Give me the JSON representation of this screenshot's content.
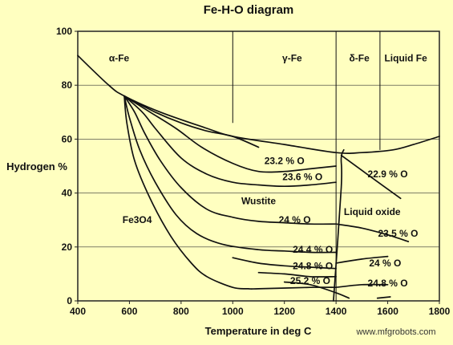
{
  "chart_data": {
    "type": "line",
    "title": "Fe-H-O diagram",
    "xlabel": "Temperature in deg C",
    "ylabel": "Hydrogen %",
    "xlim": [
      400,
      1800
    ],
    "ylim": [
      0,
      100
    ],
    "xticks": [
      400,
      600,
      800,
      1000,
      1200,
      1400,
      1600,
      1800
    ],
    "yticks": [
      0,
      20,
      40,
      60,
      80,
      100
    ],
    "grid": true,
    "background_color": "#ffffc0",
    "line_color": "#111111",
    "grid_color": "#333333",
    "phase_dividers": [
      {
        "x": 1000,
        "y_from": 66,
        "y_to": 100
      },
      {
        "x": 1400,
        "y_from": 0,
        "y_to": 100
      },
      {
        "x": 1570,
        "y_from": 56,
        "y_to": 100
      }
    ],
    "series": [
      {
        "points": [
          [
            400,
            91
          ],
          [
            520,
            80
          ],
          [
            580,
            76
          ],
          [
            720,
            70
          ],
          [
            900,
            64
          ],
          [
            1000,
            61
          ],
          [
            1200,
            58
          ],
          [
            1400,
            55
          ],
          [
            1500,
            55
          ],
          [
            1620,
            56
          ],
          [
            1700,
            58
          ],
          [
            1800,
            61
          ]
        ]
      },
      {
        "points": [
          [
            580,
            76
          ],
          [
            700,
            70
          ],
          [
            800,
            66
          ],
          [
            900,
            63
          ],
          [
            1000,
            61
          ],
          [
            1100,
            57
          ]
        ]
      },
      {
        "points": [
          [
            580,
            76
          ],
          [
            680,
            70
          ],
          [
            780,
            64
          ],
          [
            880,
            57
          ],
          [
            1000,
            51
          ],
          [
            1100,
            48
          ],
          [
            1200,
            48
          ],
          [
            1300,
            49
          ],
          [
            1400,
            50
          ]
        ]
      },
      {
        "points": [
          [
            580,
            76
          ],
          [
            650,
            70
          ],
          [
            700,
            64
          ],
          [
            800,
            53
          ],
          [
            900,
            47
          ],
          [
            1000,
            44
          ],
          [
            1100,
            43
          ],
          [
            1200,
            42.5
          ],
          [
            1300,
            43
          ],
          [
            1400,
            44
          ]
        ]
      },
      {
        "points": [
          [
            580,
            76
          ],
          [
            620,
            70
          ],
          [
            660,
            62
          ],
          [
            720,
            52
          ],
          [
            800,
            42
          ],
          [
            900,
            34
          ],
          [
            1000,
            31
          ],
          [
            1100,
            29.5
          ],
          [
            1200,
            29
          ],
          [
            1300,
            28.5
          ],
          [
            1400,
            28.5
          ]
        ]
      },
      {
        "points": [
          [
            580,
            76
          ],
          [
            600,
            68
          ],
          [
            640,
            56
          ],
          [
            700,
            44
          ],
          [
            780,
            32
          ],
          [
            860,
            25
          ],
          [
            960,
            21
          ],
          [
            1100,
            19
          ],
          [
            1200,
            18.5
          ],
          [
            1300,
            18
          ],
          [
            1400,
            18
          ]
        ]
      },
      {
        "points": [
          [
            580,
            76
          ],
          [
            590,
            66
          ],
          [
            620,
            52
          ],
          [
            680,
            38
          ],
          [
            760,
            24
          ],
          [
            840,
            14
          ],
          [
            900,
            9
          ],
          [
            1000,
            5
          ],
          [
            1060,
            4.5
          ],
          [
            1100,
            4.5
          ],
          [
            1300,
            5
          ],
          [
            1400,
            5
          ]
        ]
      },
      {
        "points": [
          [
            1000,
            16
          ],
          [
            1100,
            14
          ],
          [
            1200,
            13
          ],
          [
            1300,
            12.5
          ],
          [
            1400,
            12
          ]
        ]
      },
      {
        "points": [
          [
            1100,
            10.5
          ],
          [
            1200,
            10
          ],
          [
            1300,
            9
          ],
          [
            1400,
            9
          ]
        ]
      },
      {
        "points": [
          [
            1200,
            7
          ],
          [
            1300,
            6
          ],
          [
            1400,
            3
          ],
          [
            1450,
            1
          ]
        ]
      },
      {
        "points": [
          [
            1390,
            0
          ],
          [
            1420,
            42
          ],
          [
            1420,
            53
          ],
          [
            1430,
            56
          ]
        ]
      },
      {
        "points": [
          [
            1560,
            1
          ],
          [
            1610,
            1.5
          ]
        ]
      },
      {
        "points": [
          [
            1420,
            54
          ],
          [
            1520,
            47
          ],
          [
            1650,
            38
          ]
        ]
      },
      {
        "points": [
          [
            1400,
            28.5
          ],
          [
            1500,
            27
          ],
          [
            1600,
            24.5
          ],
          [
            1680,
            22
          ]
        ]
      },
      {
        "points": [
          [
            1400,
            14
          ],
          [
            1500,
            15.5
          ],
          [
            1600,
            16.5
          ]
        ]
      },
      {
        "points": [
          [
            1400,
            5
          ],
          [
            1500,
            6
          ],
          [
            1600,
            6
          ]
        ]
      }
    ],
    "annotations": [
      {
        "text": "α-Fe",
        "x": 560,
        "y": 90
      },
      {
        "text": "γ-Fe",
        "x": 1230,
        "y": 90
      },
      {
        "text": "δ-Fe",
        "x": 1490,
        "y": 90
      },
      {
        "text": "Liquid Fe",
        "x": 1670,
        "y": 90
      },
      {
        "text": "23.2 % O",
        "x": 1200,
        "y": 52
      },
      {
        "text": "23.6 % O",
        "x": 1270,
        "y": 46
      },
      {
        "text": "22.9 % O",
        "x": 1600,
        "y": 47
      },
      {
        "text": "Wustite",
        "x": 1100,
        "y": 37
      },
      {
        "text": "Fe3O4",
        "x": 630,
        "y": 30
      },
      {
        "text": "24 % O",
        "x": 1240,
        "y": 30
      },
      {
        "text": "Liquid oxide",
        "x": 1540,
        "y": 33
      },
      {
        "text": "23.5 % O",
        "x": 1640,
        "y": 25
      },
      {
        "text": "24.4 % O",
        "x": 1310,
        "y": 19
      },
      {
        "text": "24.8 % O",
        "x": 1310,
        "y": 13
      },
      {
        "text": "24 % O",
        "x": 1590,
        "y": 14
      },
      {
        "text": "25.2 % O",
        "x": 1300,
        "y": 7.5
      },
      {
        "text": "24.8 % O",
        "x": 1600,
        "y": 6.5
      }
    ]
  },
  "footer": {
    "watermark": "www.mfgrobots.com"
  }
}
